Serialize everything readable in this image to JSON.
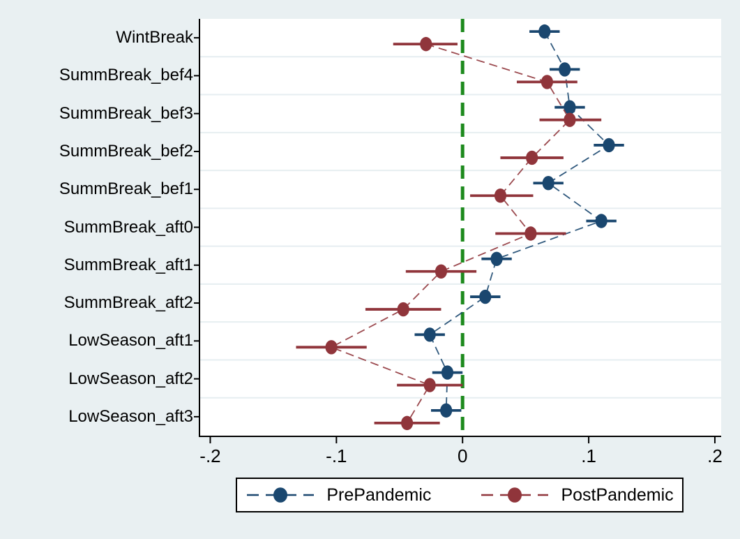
{
  "colors": {
    "figure_background": "#e9f0f2",
    "plot_background": "#ffffff",
    "gridline": "#e6eef1",
    "axis": "#000000",
    "zero_line": "#1d8a1d",
    "prepandemic": "#1a476f",
    "postpandemic": "#90353b"
  },
  "chart_data": {
    "type": "scatter",
    "subtype": "horizontal-coefficient-plot-with-ci",
    "title": "",
    "xlabel": "",
    "ylabel": "",
    "xlim": [
      -0.208,
      0.205
    ],
    "x_ticks": [
      -0.2,
      -0.1,
      0,
      0.1,
      0.2
    ],
    "x_tick_labels": [
      "-.2",
      "-.1",
      "0",
      ".1",
      ".2"
    ],
    "grid": "horizontal lines between categories",
    "legend_position": "bottom-center",
    "zero_line": {
      "x": 0,
      "style": "dashed",
      "color": "#1d8a1d"
    },
    "categories": [
      "WintBreak",
      "SummBreak_bef4",
      "SummBreak_bef3",
      "SummBreak_bef2",
      "SummBreak_bef1",
      "SummBreak_aft0",
      "SummBreak_aft1",
      "SummBreak_aft2",
      "LowSeason_aft1",
      "LowSeason_aft2",
      "LowSeason_aft3"
    ],
    "series": [
      {
        "name": "PrePandemic",
        "color": "#1a476f",
        "values": [
          0.065,
          0.081,
          0.085,
          0.116,
          0.068,
          0.11,
          0.027,
          0.018,
          -0.026,
          -0.012,
          -0.013
        ],
        "ci_low": [
          0.053,
          0.069,
          0.073,
          0.104,
          0.056,
          0.098,
          0.015,
          0.006,
          -0.038,
          -0.024,
          -0.025
        ],
        "ci_high": [
          0.077,
          0.093,
          0.097,
          0.128,
          0.08,
          0.122,
          0.039,
          0.03,
          -0.014,
          0.0,
          -0.001
        ]
      },
      {
        "name": "PostPandemic",
        "color": "#90353b",
        "values": [
          -0.029,
          0.067,
          0.085,
          0.055,
          0.03,
          0.054,
          -0.017,
          -0.047,
          -0.104,
          -0.026,
          -0.044
        ],
        "ci_low": [
          -0.055,
          0.043,
          0.061,
          0.03,
          0.006,
          0.026,
          -0.045,
          -0.077,
          -0.132,
          -0.052,
          -0.07
        ],
        "ci_high": [
          -0.004,
          0.091,
          0.11,
          0.08,
          0.056,
          0.082,
          0.011,
          -0.017,
          -0.076,
          0.0,
          -0.018
        ]
      }
    ]
  }
}
